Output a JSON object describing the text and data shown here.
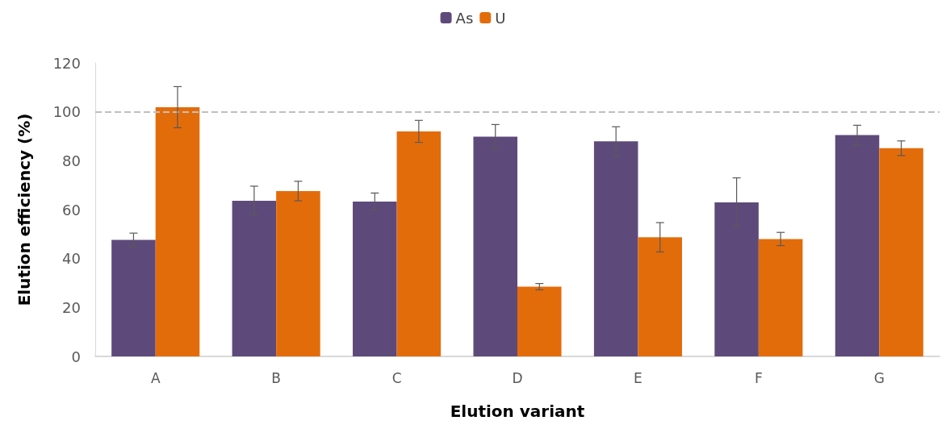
{
  "chart_data": {
    "type": "bar",
    "xlabel": "Elution variant",
    "ylabel": "Elution efficiency (%)",
    "categories": [
      "A",
      "B",
      "C",
      "D",
      "E",
      "F",
      "G"
    ],
    "series": [
      {
        "name": "As",
        "color": "#5e4a7a",
        "values": [
          47.6,
          63.6,
          63.3,
          89.8,
          87.9,
          63.0,
          90.5
        ],
        "errors": [
          2.8,
          6,
          3.5,
          5,
          6,
          10,
          4
        ]
      },
      {
        "name": "U",
        "color": "#e36c0a",
        "values": [
          101.9,
          67.6,
          92.0,
          28.5,
          48.7,
          48.0,
          85.1
        ],
        "errors": [
          8.4,
          4,
          4.5,
          1.3,
          6,
          2.7,
          3
        ]
      }
    ],
    "ylim": [
      0,
      120
    ],
    "yticks": [
      0,
      20,
      40,
      60,
      80,
      100,
      120
    ],
    "ref_lines": [
      {
        "axis": "y",
        "value": 100,
        "color": "#bfbfbf",
        "line_style": "dashed"
      }
    ],
    "grid": false,
    "legend": "top"
  }
}
